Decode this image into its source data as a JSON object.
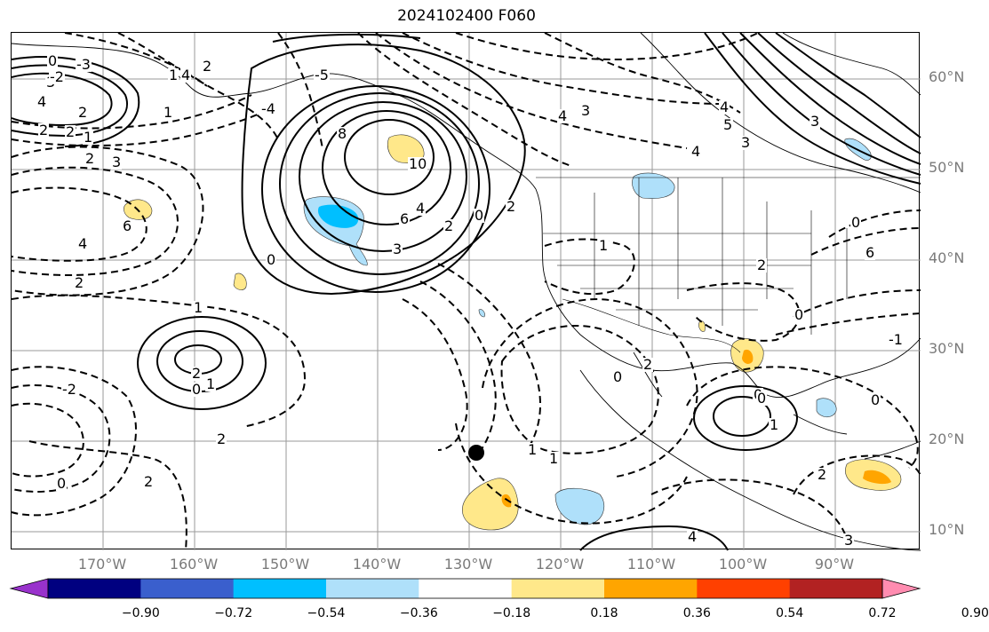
{
  "title": "2024102400 F060",
  "axes": {
    "lat_labels": [
      "60°N",
      "50°N",
      "40°N",
      "30°N",
      "20°N",
      "10°N"
    ],
    "lon_labels": [
      "170°W",
      "160°W",
      "150°W",
      "140°W",
      "130°W",
      "120°W",
      "110°W",
      "100°W",
      "90°W"
    ]
  },
  "contour_labels": [
    "0",
    "3",
    "4",
    "2",
    "2",
    "1",
    "2",
    "3",
    "2",
    "1",
    "6",
    "4",
    "2",
    "1",
    "2",
    "0",
    "1",
    "2",
    "0",
    "-2",
    "2",
    "0",
    "-2",
    "1",
    "8",
    "10",
    "6",
    "4",
    "2",
    "0",
    "2",
    "3",
    "4",
    "3",
    "4",
    "4",
    "3",
    "1",
    "0",
    "2",
    "0",
    "1",
    "1",
    "0",
    "-1",
    "0",
    "2",
    "0",
    "2",
    "1",
    "3",
    "4",
    "-3",
    "-4",
    "-5",
    "4",
    "3",
    "5",
    "6",
    "0",
    "2",
    "2"
  ],
  "colorbar": {
    "ticks": [
      "−0.90",
      "−0.72",
      "−0.54",
      "−0.36",
      "−0.18",
      "0.18",
      "0.36",
      "0.54",
      "0.72",
      "0.90"
    ],
    "colors": [
      "#9932cc",
      "#000080",
      "#3a5fcd",
      "#00bfff",
      "#afe0fa",
      "#ffffff",
      "#ffe88a",
      "#ffa500",
      "#ff4000",
      "#b22222",
      "#ff8cb0"
    ]
  },
  "marker": "station-dot"
}
